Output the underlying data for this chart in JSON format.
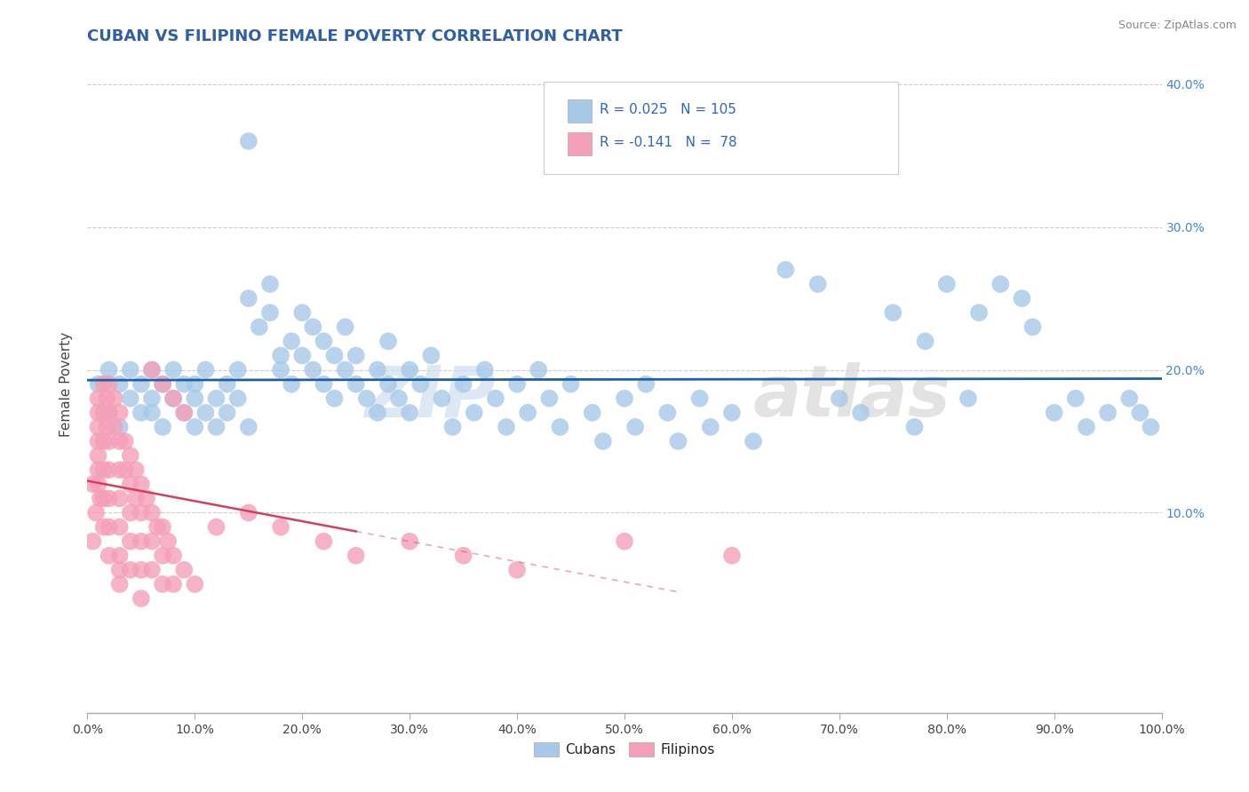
{
  "title": "CUBAN VS FILIPINO FEMALE POVERTY CORRELATION CHART",
  "source": "Source: ZipAtlas.com",
  "ylabel": "Female Poverty",
  "cuban_R": "0.025",
  "cuban_N": "105",
  "filipino_R": "-0.141",
  "filipino_N": "78",
  "cuban_color": "#a8c8e8",
  "filipino_color": "#f4a0b8",
  "cuban_line_color": "#2060a0",
  "filipino_line_color": "#d04060",
  "watermark_zip": "ZIP",
  "watermark_atlas": "atlas",
  "legend_cuban": "Cubans",
  "legend_filipino": "Filipinos",
  "title_color": "#3060a0",
  "text_color": "#444444",
  "grid_color": "#cccccc",
  "source_color": "#888888"
}
